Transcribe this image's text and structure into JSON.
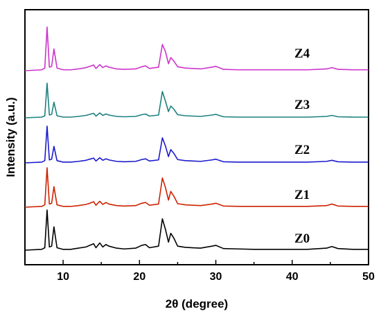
{
  "chart_data": {
    "type": "line",
    "title": "",
    "xlabel": "2θ (degree)",
    "ylabel": "Intensity (a.u.)",
    "xlim": [
      5,
      50
    ],
    "x_ticks": [
      "10",
      "20",
      "30",
      "40",
      "50"
    ],
    "y_ticks_shown": false,
    "grid": false,
    "legend": "inline-labels-right",
    "series": [
      {
        "name": "Z0",
        "color": "#000000",
        "points": [
          [
            5,
            0
          ],
          [
            7.2,
            0.02
          ],
          [
            7.6,
            0.06
          ],
          [
            7.9,
            1.0
          ],
          [
            8.2,
            0.08
          ],
          [
            8.5,
            0.1
          ],
          [
            8.8,
            0.58
          ],
          [
            9.2,
            0.06
          ],
          [
            10,
            0.02
          ],
          [
            11,
            0.02
          ],
          [
            12,
            0.05
          ],
          [
            13,
            0.08
          ],
          [
            13.5,
            0.12
          ],
          [
            14,
            0.16
          ],
          [
            14.3,
            0.06
          ],
          [
            14.8,
            0.18
          ],
          [
            15.2,
            0.08
          ],
          [
            15.6,
            0.14
          ],
          [
            16,
            0.1
          ],
          [
            17,
            0.05
          ],
          [
            18,
            0.03
          ],
          [
            19.5,
            0.05
          ],
          [
            20.3,
            0.12
          ],
          [
            20.8,
            0.14
          ],
          [
            21.3,
            0.06
          ],
          [
            22.5,
            0.1
          ],
          [
            23.0,
            0.78
          ],
          [
            23.4,
            0.52
          ],
          [
            23.8,
            0.2
          ],
          [
            24.1,
            0.42
          ],
          [
            24.5,
            0.3
          ],
          [
            25,
            0.1
          ],
          [
            26,
            0.07
          ],
          [
            27,
            0.06
          ],
          [
            28,
            0.05
          ],
          [
            29.5,
            0.1
          ],
          [
            30,
            0.12
          ],
          [
            31,
            0.04
          ],
          [
            33,
            0.03
          ],
          [
            35,
            0.02
          ],
          [
            38,
            0.02
          ],
          [
            42,
            0.02
          ],
          [
            44.5,
            0.05
          ],
          [
            45.2,
            0.09
          ],
          [
            46,
            0.04
          ],
          [
            48,
            0.02
          ],
          [
            50,
            0.02
          ]
        ]
      },
      {
        "name": "Z1",
        "color": "#cc2200",
        "points": [
          [
            5,
            0
          ],
          [
            7.2,
            0.02
          ],
          [
            7.6,
            0.06
          ],
          [
            7.9,
            1.0
          ],
          [
            8.2,
            0.08
          ],
          [
            8.5,
            0.1
          ],
          [
            8.8,
            0.52
          ],
          [
            9.2,
            0.06
          ],
          [
            10,
            0.02
          ],
          [
            11,
            0.02
          ],
          [
            12,
            0.04
          ],
          [
            13,
            0.07
          ],
          [
            13.5,
            0.1
          ],
          [
            14,
            0.14
          ],
          [
            14.3,
            0.05
          ],
          [
            14.8,
            0.15
          ],
          [
            15.2,
            0.07
          ],
          [
            15.6,
            0.12
          ],
          [
            16,
            0.08
          ],
          [
            17,
            0.04
          ],
          [
            18,
            0.03
          ],
          [
            19.5,
            0.04
          ],
          [
            20.3,
            0.1
          ],
          [
            20.8,
            0.12
          ],
          [
            21.3,
            0.05
          ],
          [
            22.5,
            0.08
          ],
          [
            23.0,
            0.74
          ],
          [
            23.4,
            0.5
          ],
          [
            23.8,
            0.18
          ],
          [
            24.1,
            0.4
          ],
          [
            24.5,
            0.28
          ],
          [
            25,
            0.09
          ],
          [
            26,
            0.06
          ],
          [
            27,
            0.05
          ],
          [
            28,
            0.04
          ],
          [
            29.5,
            0.08
          ],
          [
            30,
            0.1
          ],
          [
            31,
            0.03
          ],
          [
            33,
            0.02
          ],
          [
            35,
            0.02
          ],
          [
            38,
            0.02
          ],
          [
            42,
            0.02
          ],
          [
            44.5,
            0.04
          ],
          [
            45.2,
            0.08
          ],
          [
            46,
            0.03
          ],
          [
            48,
            0.02
          ],
          [
            50,
            0.02
          ]
        ]
      },
      {
        "name": "Z2",
        "color": "#1a1acc",
        "points": [
          [
            5,
            0
          ],
          [
            7.2,
            0.02
          ],
          [
            7.6,
            0.06
          ],
          [
            7.9,
            1.0
          ],
          [
            8.2,
            0.08
          ],
          [
            8.5,
            0.1
          ],
          [
            8.8,
            0.45
          ],
          [
            9.2,
            0.06
          ],
          [
            10,
            0.02
          ],
          [
            11,
            0.02
          ],
          [
            12,
            0.04
          ],
          [
            13,
            0.07
          ],
          [
            13.5,
            0.1
          ],
          [
            14,
            0.13
          ],
          [
            14.3,
            0.05
          ],
          [
            14.8,
            0.14
          ],
          [
            15.2,
            0.07
          ],
          [
            15.6,
            0.11
          ],
          [
            16,
            0.08
          ],
          [
            17,
            0.04
          ],
          [
            18,
            0.03
          ],
          [
            19.5,
            0.04
          ],
          [
            20.3,
            0.09
          ],
          [
            20.8,
            0.11
          ],
          [
            21.3,
            0.05
          ],
          [
            22.5,
            0.08
          ],
          [
            23.0,
            0.68
          ],
          [
            23.4,
            0.46
          ],
          [
            23.8,
            0.17
          ],
          [
            24.1,
            0.36
          ],
          [
            24.5,
            0.26
          ],
          [
            25,
            0.09
          ],
          [
            26,
            0.06
          ],
          [
            27,
            0.05
          ],
          [
            28,
            0.04
          ],
          [
            29.5,
            0.08
          ],
          [
            30,
            0.1
          ],
          [
            31,
            0.03
          ],
          [
            33,
            0.02
          ],
          [
            35,
            0.02
          ],
          [
            38,
            0.02
          ],
          [
            42,
            0.02
          ],
          [
            44.5,
            0.04
          ],
          [
            45.2,
            0.07
          ],
          [
            46,
            0.03
          ],
          [
            48,
            0.02
          ],
          [
            50,
            0.02
          ]
        ]
      },
      {
        "name": "Z3",
        "color": "#1a8080",
        "points": [
          [
            5,
            0
          ],
          [
            7.2,
            0.02
          ],
          [
            7.6,
            0.06
          ],
          [
            7.9,
            1.0
          ],
          [
            8.2,
            0.08
          ],
          [
            8.5,
            0.1
          ],
          [
            8.8,
            0.45
          ],
          [
            9.2,
            0.06
          ],
          [
            10,
            0.02
          ],
          [
            11,
            0.02
          ],
          [
            12,
            0.04
          ],
          [
            13,
            0.07
          ],
          [
            13.5,
            0.1
          ],
          [
            14,
            0.13
          ],
          [
            14.3,
            0.05
          ],
          [
            14.8,
            0.14
          ],
          [
            15.2,
            0.07
          ],
          [
            15.6,
            0.11
          ],
          [
            16,
            0.08
          ],
          [
            17,
            0.04
          ],
          [
            18,
            0.03
          ],
          [
            19.5,
            0.04
          ],
          [
            20.3,
            0.09
          ],
          [
            20.8,
            0.11
          ],
          [
            21.3,
            0.05
          ],
          [
            22.5,
            0.08
          ],
          [
            23.0,
            0.76
          ],
          [
            23.4,
            0.48
          ],
          [
            23.8,
            0.18
          ],
          [
            24.1,
            0.34
          ],
          [
            24.5,
            0.25
          ],
          [
            25,
            0.09
          ],
          [
            26,
            0.06
          ],
          [
            27,
            0.05
          ],
          [
            28,
            0.04
          ],
          [
            29.5,
            0.08
          ],
          [
            30,
            0.1
          ],
          [
            31,
            0.03
          ],
          [
            33,
            0.02
          ],
          [
            35,
            0.02
          ],
          [
            38,
            0.02
          ],
          [
            42,
            0.02
          ],
          [
            44.5,
            0.04
          ],
          [
            45.2,
            0.07
          ],
          [
            46,
            0.03
          ],
          [
            48,
            0.02
          ],
          [
            50,
            0.02
          ]
        ]
      },
      {
        "name": "Z4",
        "color": "#cc33cc",
        "points": [
          [
            5,
            0
          ],
          [
            7.2,
            0.02
          ],
          [
            7.6,
            0.06
          ],
          [
            7.9,
            1.0
          ],
          [
            8.2,
            0.08
          ],
          [
            8.5,
            0.1
          ],
          [
            8.8,
            0.5
          ],
          [
            9.2,
            0.06
          ],
          [
            10,
            0.02
          ],
          [
            11,
            0.02
          ],
          [
            12,
            0.04
          ],
          [
            13,
            0.07
          ],
          [
            13.5,
            0.1
          ],
          [
            14,
            0.13
          ],
          [
            14.3,
            0.05
          ],
          [
            14.8,
            0.14
          ],
          [
            15.2,
            0.07
          ],
          [
            15.6,
            0.11
          ],
          [
            16,
            0.08
          ],
          [
            17,
            0.04
          ],
          [
            18,
            0.03
          ],
          [
            19.5,
            0.04
          ],
          [
            20.3,
            0.09
          ],
          [
            20.8,
            0.11
          ],
          [
            21.3,
            0.05
          ],
          [
            22.5,
            0.08
          ],
          [
            23.0,
            0.6
          ],
          [
            23.4,
            0.44
          ],
          [
            23.8,
            0.16
          ],
          [
            24.1,
            0.3
          ],
          [
            24.5,
            0.22
          ],
          [
            25,
            0.09
          ],
          [
            26,
            0.06
          ],
          [
            27,
            0.05
          ],
          [
            28,
            0.04
          ],
          [
            29.5,
            0.08
          ],
          [
            30,
            0.1
          ],
          [
            31,
            0.03
          ],
          [
            33,
            0.02
          ],
          [
            35,
            0.02
          ],
          [
            38,
            0.02
          ],
          [
            42,
            0.02
          ],
          [
            44.5,
            0.04
          ],
          [
            45.2,
            0.07
          ],
          [
            46,
            0.03
          ],
          [
            48,
            0.02
          ],
          [
            50,
            0.02
          ]
        ]
      }
    ]
  }
}
